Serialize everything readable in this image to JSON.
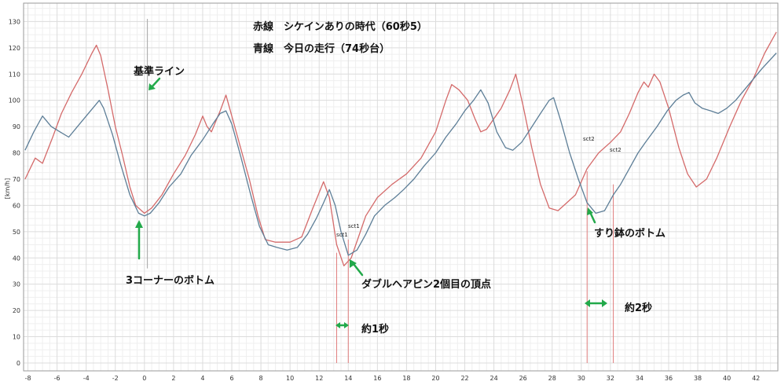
{
  "chart_data": {
    "type": "line",
    "title": "",
    "xlabel": "",
    "ylabel": "[km/h]",
    "xlim": [
      -8.3,
      43.5
    ],
    "ylim": [
      -3,
      137
    ],
    "x_ticks": [
      -8,
      -6,
      -4,
      -2,
      0,
      2,
      4,
      6,
      8,
      10,
      12,
      14,
      16,
      18,
      20,
      22,
      24,
      26,
      28,
      30,
      32,
      34,
      36,
      38,
      40,
      42
    ],
    "y_ticks": [
      0,
      10,
      20,
      30,
      40,
      50,
      60,
      70,
      80,
      90,
      100,
      110,
      120,
      130
    ],
    "grid": true,
    "series": [
      {
        "color": "#d46a6a",
        "points": [
          [
            -8.2,
            70
          ],
          [
            -7.5,
            78
          ],
          [
            -7,
            76
          ],
          [
            -6.3,
            86
          ],
          [
            -5.7,
            95
          ],
          [
            -5,
            103
          ],
          [
            -4.3,
            110
          ],
          [
            -3.6,
            118
          ],
          [
            -3.3,
            121
          ],
          [
            -3,
            117
          ],
          [
            -2.5,
            104
          ],
          [
            -2,
            90
          ],
          [
            -1.5,
            79
          ],
          [
            -1,
            67
          ],
          [
            -0.6,
            60
          ],
          [
            -0.2,
            58
          ],
          [
            0,
            57
          ],
          [
            0.5,
            59
          ],
          [
            1.2,
            64
          ],
          [
            2,
            72
          ],
          [
            2.8,
            79
          ],
          [
            3.5,
            87
          ],
          [
            4,
            94
          ],
          [
            4.3,
            90
          ],
          [
            4.6,
            88
          ],
          [
            5.2,
            96
          ],
          [
            5.6,
            102
          ],
          [
            5.9,
            96
          ],
          [
            6.5,
            84
          ],
          [
            7.2,
            70
          ],
          [
            7.8,
            56
          ],
          [
            8.3,
            47
          ],
          [
            9,
            46
          ],
          [
            10,
            46
          ],
          [
            10.8,
            48
          ],
          [
            11.5,
            58
          ],
          [
            12.3,
            69
          ],
          [
            12.7,
            63
          ],
          [
            13.2,
            45
          ],
          [
            13.7,
            37
          ],
          [
            14.2,
            40
          ],
          [
            14.7,
            48
          ],
          [
            15.2,
            56
          ],
          [
            16,
            63
          ],
          [
            17,
            68
          ],
          [
            18,
            72
          ],
          [
            19,
            78
          ],
          [
            20,
            88
          ],
          [
            20.7,
            100
          ],
          [
            21.1,
            106
          ],
          [
            21.6,
            104
          ],
          [
            22.2,
            100
          ],
          [
            22.7,
            93
          ],
          [
            23.1,
            88
          ],
          [
            23.5,
            89
          ],
          [
            24.5,
            97
          ],
          [
            25.1,
            104
          ],
          [
            25.5,
            110
          ],
          [
            26,
            98
          ],
          [
            26.6,
            82
          ],
          [
            27.2,
            68
          ],
          [
            27.8,
            59
          ],
          [
            28.4,
            58
          ],
          [
            29,
            61
          ],
          [
            29.6,
            64
          ],
          [
            30.4,
            74
          ],
          [
            31.2,
            80
          ],
          [
            32,
            84
          ],
          [
            32.7,
            88
          ],
          [
            33.3,
            95
          ],
          [
            33.9,
            103
          ],
          [
            34.3,
            107
          ],
          [
            34.6,
            105
          ],
          [
            35,
            110
          ],
          [
            35.4,
            107
          ],
          [
            36,
            97
          ],
          [
            36.7,
            82
          ],
          [
            37.3,
            72
          ],
          [
            37.9,
            67
          ],
          [
            38.6,
            70
          ],
          [
            39.3,
            78
          ],
          [
            40.2,
            90
          ],
          [
            41,
            100
          ],
          [
            41.8,
            108
          ],
          [
            42.6,
            118
          ],
          [
            43.4,
            126
          ]
        ]
      },
      {
        "color": "#5d7e97",
        "points": [
          [
            -8.2,
            81
          ],
          [
            -7.6,
            88
          ],
          [
            -7,
            94
          ],
          [
            -6.4,
            90
          ],
          [
            -5.8,
            88
          ],
          [
            -5.2,
            86
          ],
          [
            -4.6,
            90
          ],
          [
            -4,
            94
          ],
          [
            -3.4,
            98
          ],
          [
            -3.1,
            100
          ],
          [
            -2.8,
            97
          ],
          [
            -2.2,
            87
          ],
          [
            -1.6,
            75
          ],
          [
            -1,
            64
          ],
          [
            -0.4,
            57
          ],
          [
            0,
            56
          ],
          [
            0.4,
            57
          ],
          [
            1,
            61
          ],
          [
            1.7,
            67
          ],
          [
            2.5,
            72
          ],
          [
            3.2,
            79
          ],
          [
            4,
            85
          ],
          [
            4.7,
            91
          ],
          [
            5.2,
            95
          ],
          [
            5.6,
            96
          ],
          [
            6,
            91
          ],
          [
            6.6,
            79
          ],
          [
            7.3,
            64
          ],
          [
            7.9,
            52
          ],
          [
            8.5,
            45
          ],
          [
            9.1,
            44
          ],
          [
            9.8,
            43
          ],
          [
            10.5,
            44
          ],
          [
            11.2,
            49
          ],
          [
            11.8,
            55
          ],
          [
            12.3,
            61
          ],
          [
            12.7,
            66
          ],
          [
            13.1,
            60
          ],
          [
            13.5,
            50
          ],
          [
            14,
            41
          ],
          [
            14.6,
            43
          ],
          [
            15.2,
            49
          ],
          [
            15.8,
            56
          ],
          [
            16.5,
            60
          ],
          [
            17.2,
            63
          ],
          [
            17.8,
            66
          ],
          [
            18.5,
            70
          ],
          [
            19.2,
            75
          ],
          [
            20,
            80
          ],
          [
            20.7,
            86
          ],
          [
            21.4,
            91
          ],
          [
            22,
            96
          ],
          [
            22.6,
            100
          ],
          [
            23.1,
            104
          ],
          [
            23.6,
            99
          ],
          [
            24.2,
            88
          ],
          [
            24.8,
            82
          ],
          [
            25.3,
            81
          ],
          [
            25.9,
            84
          ],
          [
            26.5,
            89
          ],
          [
            27.2,
            95
          ],
          [
            27.8,
            100
          ],
          [
            28.1,
            101
          ],
          [
            28.6,
            92
          ],
          [
            29.2,
            80
          ],
          [
            29.8,
            70
          ],
          [
            30.4,
            61
          ],
          [
            31,
            57
          ],
          [
            31.6,
            58
          ],
          [
            32.2,
            64
          ],
          [
            32.7,
            68
          ],
          [
            33.3,
            74
          ],
          [
            33.9,
            80
          ],
          [
            34.4,
            84
          ],
          [
            35.2,
            90
          ],
          [
            35.9,
            96
          ],
          [
            36.5,
            100
          ],
          [
            37,
            102
          ],
          [
            37.4,
            103
          ],
          [
            37.8,
            99
          ],
          [
            38.3,
            97
          ],
          [
            38.9,
            96
          ],
          [
            39.4,
            95
          ],
          [
            40,
            97
          ],
          [
            40.6,
            100
          ],
          [
            41.2,
            104
          ],
          [
            41.8,
            108
          ],
          [
            42.4,
            112
          ],
          [
            43.4,
            118
          ]
        ]
      }
    ],
    "annotations": {
      "legend_red": "赤線　シケインありの時代（60秒5）",
      "legend_blue": "青線　今日の走行（74秒台）",
      "base_line": "基準ライン",
      "corner3": "3コーナーのボトム",
      "double_hairpin": "ダブルヘアピン2個目の頂点",
      "suribachi": "すり鉢のボトム",
      "about1": "約1秒",
      "about2": "約2秒",
      "sct1": "sct1",
      "sct2": "sct2"
    },
    "accent_colors": {
      "arrow": "#22a94a",
      "marker": "#e07d7d",
      "base": "#b0b0b0"
    }
  }
}
